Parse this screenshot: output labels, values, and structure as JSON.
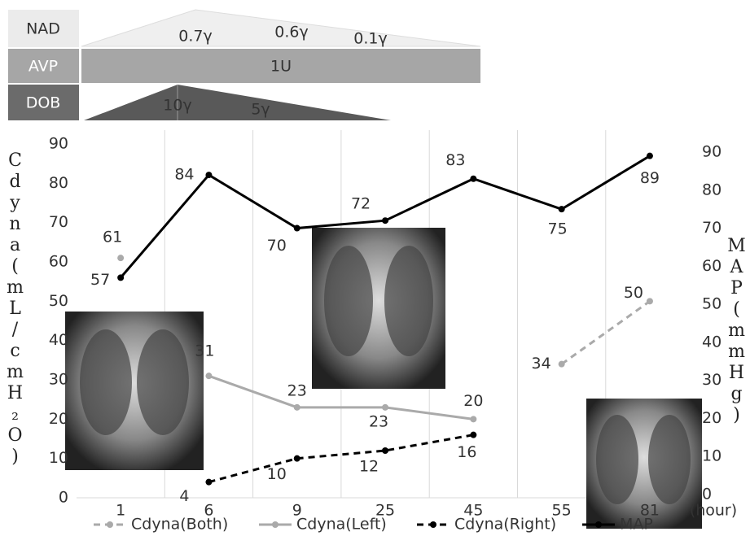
{
  "drugs": [
    {
      "name": "NAD",
      "labels": [
        "0.7γ",
        "0.6γ",
        "0.1γ"
      ]
    },
    {
      "name": "AVP",
      "labels": [
        "1U"
      ]
    },
    {
      "name": "DOB",
      "labels": [
        "10γ",
        "5γ"
      ]
    }
  ],
  "chart_data": {
    "type": "line",
    "y_label": "Cdyna(mL/cmH₂O)",
    "y2_label": "MAP(mmHg)",
    "x_label": "(hour)",
    "categories": [
      "1",
      "6",
      "9",
      "25",
      "45",
      "55",
      "81"
    ],
    "ylim": [
      0,
      90
    ],
    "yticks": [
      0,
      10,
      20,
      30,
      40,
      50,
      60,
      70,
      80,
      90
    ],
    "y2lim": [
      0,
      90
    ],
    "y2ticks": [
      0,
      10,
      20,
      30,
      40,
      50,
      60,
      70,
      80,
      90
    ],
    "legend": "bottom",
    "series": [
      {
        "name": "Cdyna(Both)",
        "color": "#aaaaaa",
        "dash": true,
        "values": [
          61,
          null,
          null,
          null,
          null,
          34,
          50
        ]
      },
      {
        "name": "Cdyna(Left)",
        "color": "#aaaaaa",
        "dash": false,
        "values": [
          null,
          31,
          23,
          23,
          20,
          null,
          null
        ]
      },
      {
        "name": "Cdyna(Right)",
        "color": "#000000",
        "dash": true,
        "values": [
          null,
          4,
          10,
          12,
          16,
          null,
          null
        ]
      },
      {
        "name": "MAP",
        "color": "#000000",
        "dash": false,
        "axis": "y2",
        "values": [
          57,
          84,
          70,
          72,
          83,
          75,
          89
        ]
      }
    ]
  }
}
